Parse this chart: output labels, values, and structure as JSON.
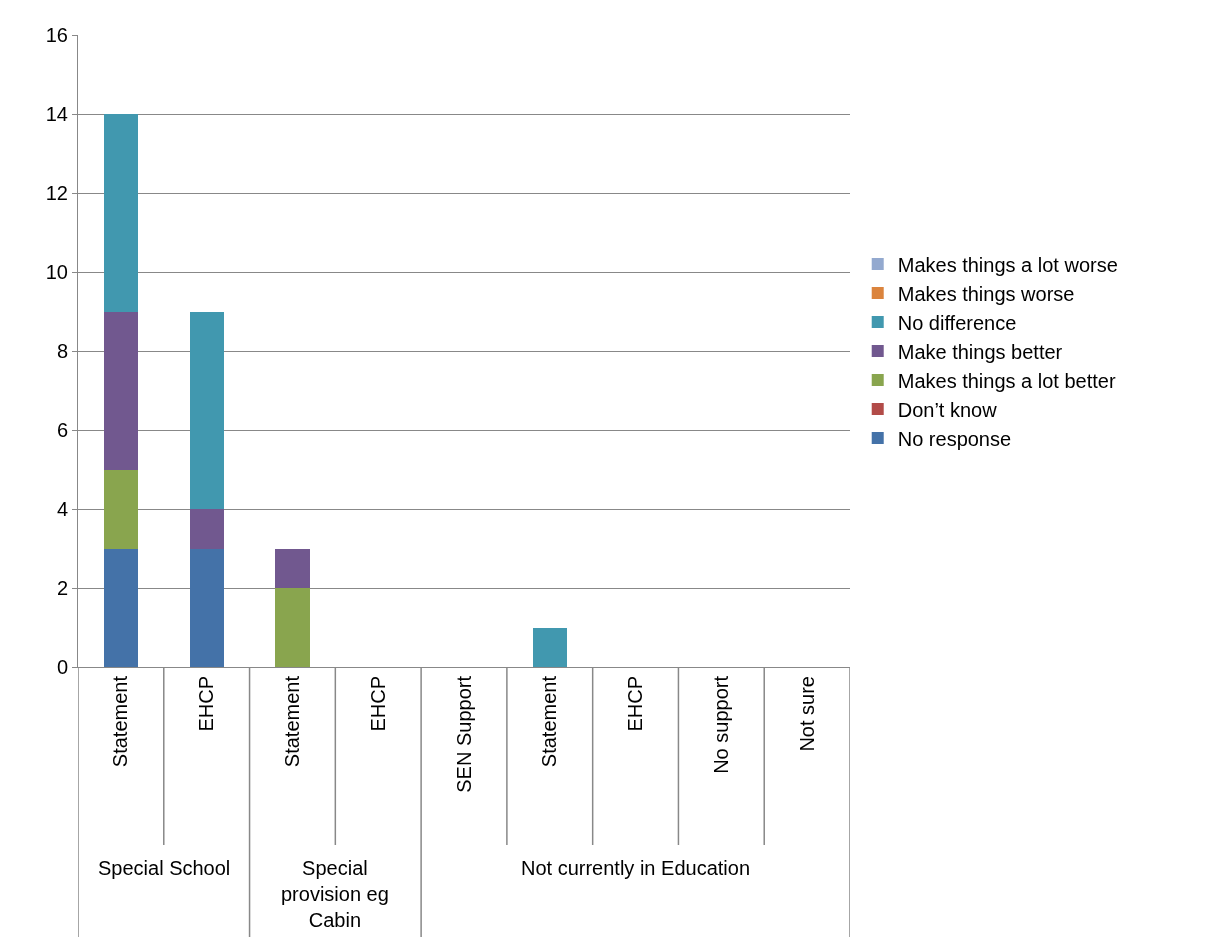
{
  "chart_data": {
    "type": "bar",
    "stacked": true,
    "categories": [
      "Statement",
      "EHCP",
      "Statement",
      "EHCP",
      "SEN Support",
      "Statement",
      "EHCP",
      "No support",
      "Not sure"
    ],
    "series": [
      {
        "name": "No response",
        "color": "#4472a8",
        "values": [
          3,
          3,
          0,
          0,
          0,
          0,
          0,
          0,
          0
        ]
      },
      {
        "name": "Don’t know",
        "color": "#b24b48",
        "values": [
          0,
          0,
          0,
          0,
          0,
          0,
          0,
          0,
          0
        ]
      },
      {
        "name": "Makes things a lot better",
        "color": "#89a54e",
        "values": [
          2,
          0,
          2,
          0,
          0,
          0,
          0,
          0,
          0
        ]
      },
      {
        "name": "Make things better",
        "color": "#71588f",
        "values": [
          4,
          1,
          1,
          0,
          0,
          0,
          0,
          0,
          0
        ]
      },
      {
        "name": "No difference",
        "color": "#4198af",
        "values": [
          5,
          5,
          0,
          0,
          0,
          1,
          0,
          0,
          0
        ]
      },
      {
        "name": "Makes things worse",
        "color": "#db843d",
        "values": [
          0,
          0,
          0,
          0,
          0,
          0,
          0,
          0,
          0
        ]
      },
      {
        "name": "Makes things a lot worse",
        "color": "#93a9cf",
        "values": [
          0,
          0,
          0,
          0,
          0,
          0,
          0,
          0,
          0
        ]
      }
    ],
    "annotations": [
      "Special School",
      "Special provision eg Cabin",
      "Not currently in Education"
    ],
    "ylim": [
      0,
      16
    ],
    "yticks": [
      0,
      2,
      4,
      6,
      8,
      10,
      12,
      14,
      16
    ],
    "grid": "y",
    "legend": "right"
  }
}
